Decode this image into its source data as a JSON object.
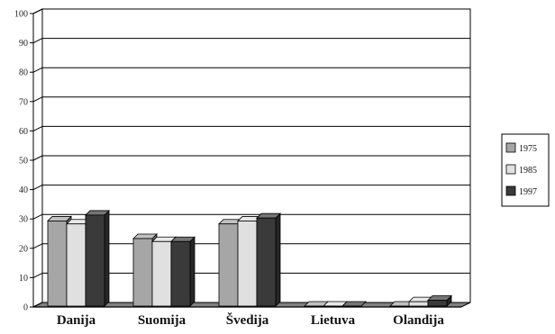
{
  "chart_data": {
    "type": "bar",
    "style": "3d-clustered-column",
    "title": "",
    "xlabel": "",
    "ylabel": "",
    "categories": [
      "Danija",
      "Suomija",
      "Švedija",
      "Lietuva",
      "Olandija"
    ],
    "series": [
      {
        "name": "1975",
        "values": [
          29,
          23,
          28,
          0,
          0
        ],
        "color": "#a6a6a6"
      },
      {
        "name": "1985",
        "values": [
          28,
          22,
          29,
          0,
          1.5
        ],
        "color": "#e0e0e0"
      },
      {
        "name": "1997",
        "values": [
          31,
          22,
          30,
          0,
          2
        ],
        "color": "#3a3a3a"
      }
    ],
    "ylim": [
      0,
      100
    ],
    "yticks": [
      0,
      10,
      20,
      30,
      40,
      50,
      60,
      70,
      80,
      90,
      100
    ],
    "grid": true,
    "legend_position": "right"
  }
}
